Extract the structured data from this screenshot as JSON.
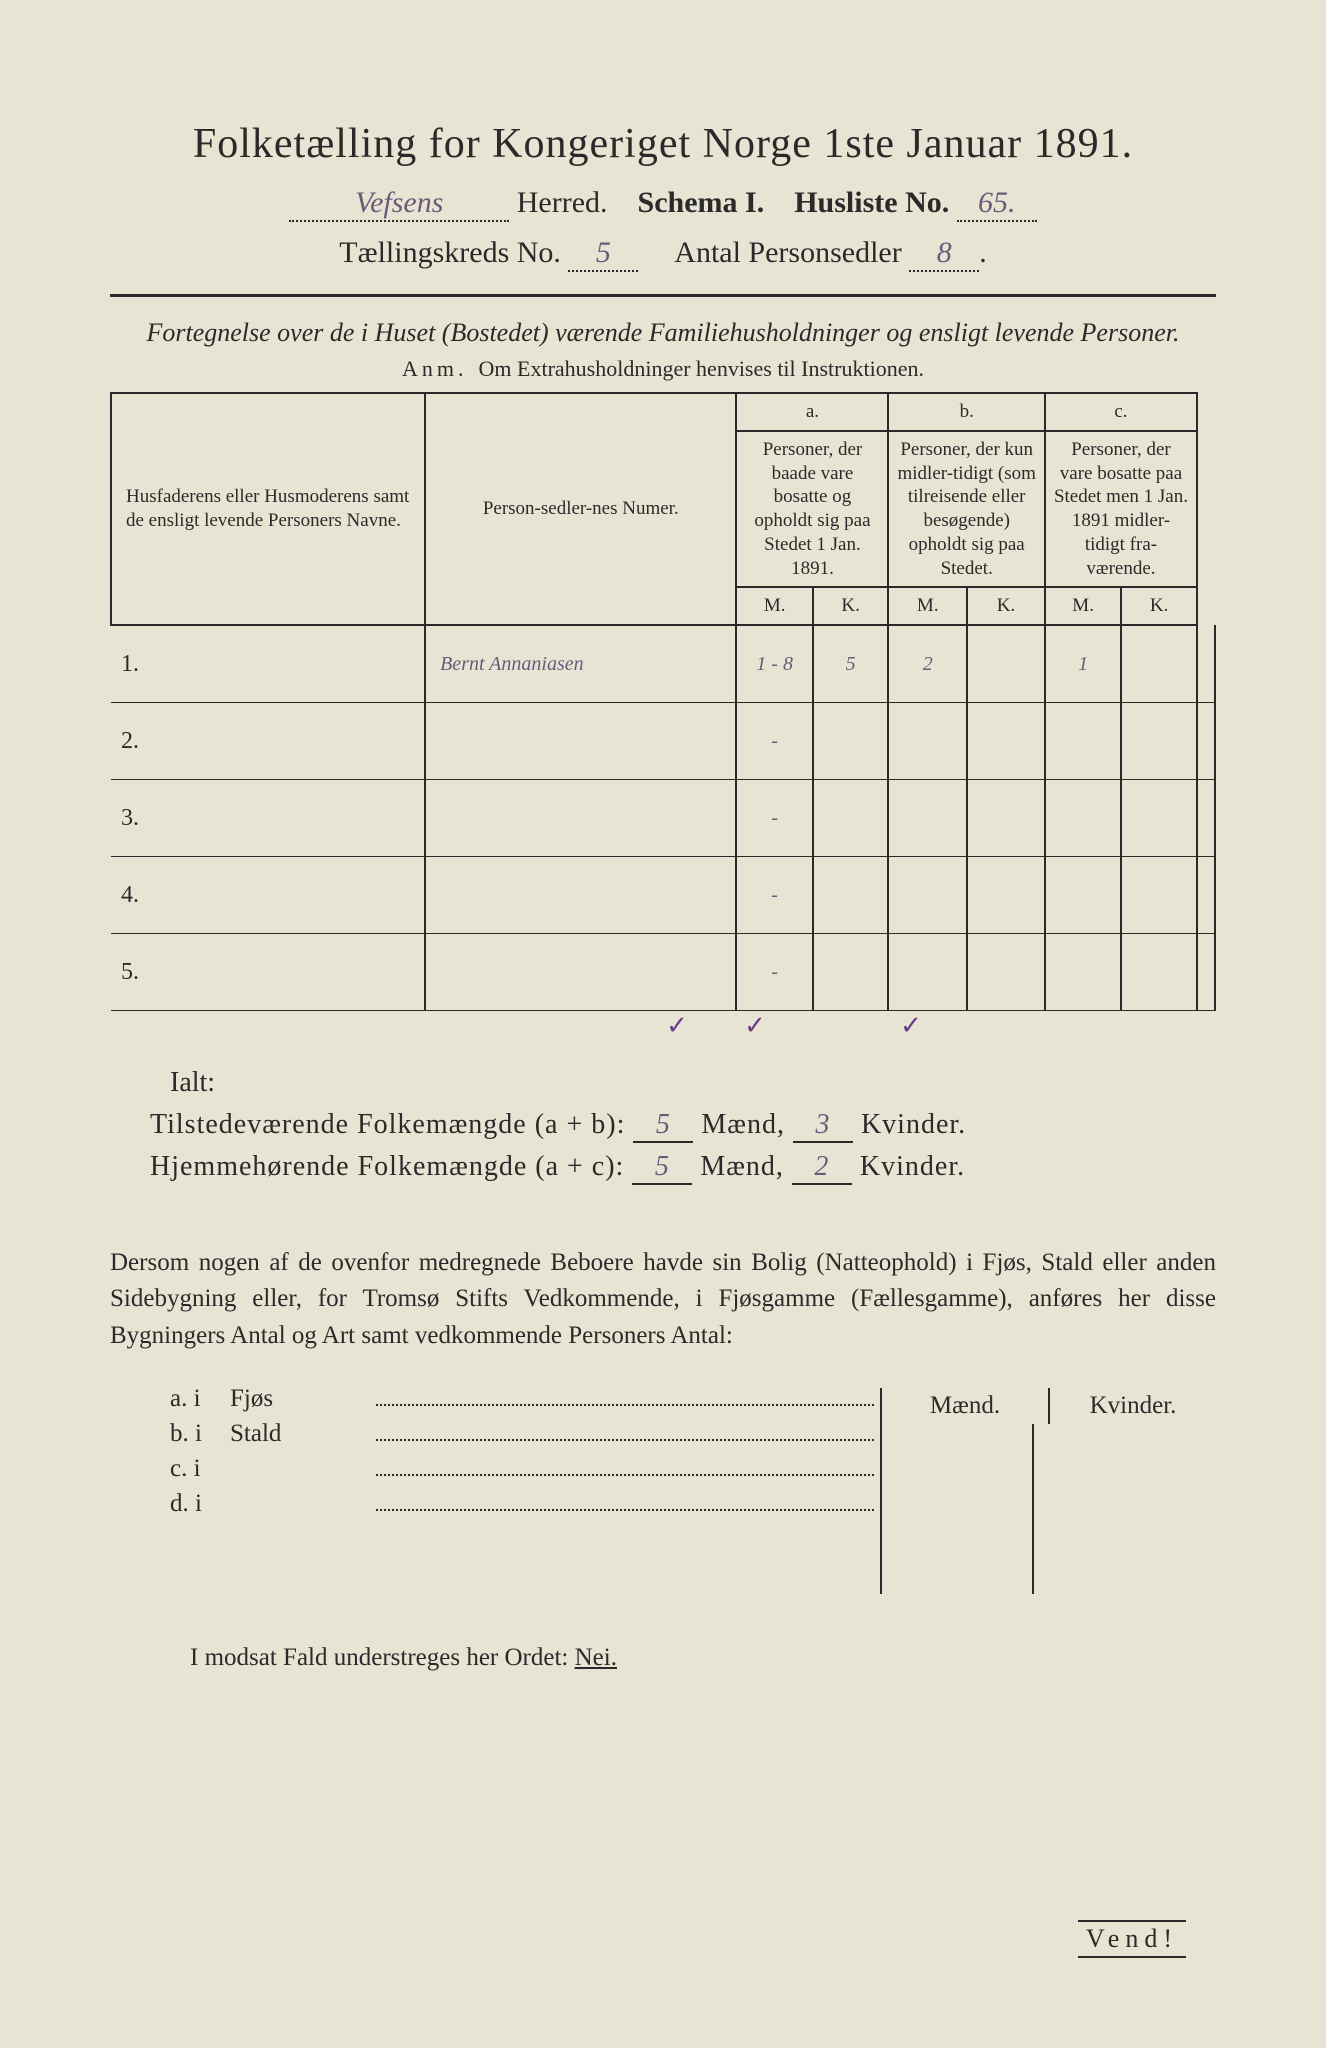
{
  "title": "Folketælling for Kongeriget Norge 1ste Januar 1891.",
  "header": {
    "herred_hw": "Vefsens",
    "herred_label": "Herred.",
    "schema": "Schema I.",
    "husliste_label": "Husliste No.",
    "husliste_no": "65.",
    "kreds_label": "Tællingskreds No.",
    "kreds_no": "5",
    "antal_label": "Antal Personsedler",
    "antal_no": "8"
  },
  "subtitle": "Fortegnelse over de i Huset (Bostedet) værende Familiehusholdninger og ensligt levende Personer.",
  "anm": {
    "lbl": "Anm.",
    "txt": "Om Extrahusholdninger henvises til Instruktionen."
  },
  "table": {
    "col1": "Husfaderens eller Husmoderens samt de ensligt levende Personers Navne.",
    "col2": "Person-sedler-nes Numer.",
    "col_a_top": "a.",
    "col_a": "Personer, der baade vare bosatte og opholdt sig paa Stedet 1 Jan. 1891.",
    "col_b_top": "b.",
    "col_b": "Personer, der kun midler-tidigt (som tilreisende eller besøgende) opholdt sig paa Stedet.",
    "col_c_top": "c.",
    "col_c": "Personer, der vare bosatte paa Stedet men 1 Jan. 1891 midler-tidigt fra-værende.",
    "M": "M.",
    "K": "K.",
    "rows": [
      {
        "n": "1.",
        "name": "Bernt Annaniasen",
        "num": "1 - 8",
        "aM": "5",
        "aK": "2",
        "bM": "",
        "bK": "1",
        "cM": "",
        "cK": ""
      },
      {
        "n": "2.",
        "name": "",
        "num": "-",
        "aM": "",
        "aK": "",
        "bM": "",
        "bK": "",
        "cM": "",
        "cK": ""
      },
      {
        "n": "3.",
        "name": "",
        "num": "-",
        "aM": "",
        "aK": "",
        "bM": "",
        "bK": "",
        "cM": "",
        "cK": ""
      },
      {
        "n": "4.",
        "name": "",
        "num": "-",
        "aM": "",
        "aK": "",
        "bM": "",
        "bK": "",
        "cM": "",
        "cK": ""
      },
      {
        "n": "5.",
        "name": "",
        "num": "-",
        "aM": "",
        "aK": "",
        "bM": "",
        "bK": "",
        "cM": "",
        "cK": ""
      }
    ],
    "checks": {
      "aM": "✓",
      "aK": "✓",
      "bK": "✓"
    }
  },
  "ialt": "Ialt:",
  "sum1": {
    "label": "Tilstedeværende Folkemængde (a + b):",
    "m": "5",
    "mlab": "Mænd,",
    "k": "3",
    "klab": "Kvinder."
  },
  "sum2": {
    "label": "Hjemmehørende Folkemængde (a + c):",
    "m": "5",
    "mlab": "Mænd,",
    "k": "2",
    "klab": "Kvinder."
  },
  "para": "Dersom nogen af de ovenfor medregnede Beboere havde sin Bolig (Natteophold) i Fjøs, Stald eller anden Sidebygning eller, for Tromsø Stifts Vedkommende, i Fjøsgamme (Fællesgamme), anføres her disse Bygningers Antal og Art samt vedkommende Personers Antal:",
  "mkhead": {
    "m": "Mænd.",
    "k": "Kvinder."
  },
  "bldg": [
    {
      "l": "a.  i",
      "n": "Fjøs"
    },
    {
      "l": "b.  i",
      "n": "Stald"
    },
    {
      "l": "c.  i",
      "n": ""
    },
    {
      "l": "d.  i",
      "n": ""
    }
  ],
  "lastline_a": "I modsat Fald understreges her Ordet:",
  "lastline_b": "Nei.",
  "vend": "Vend!"
}
